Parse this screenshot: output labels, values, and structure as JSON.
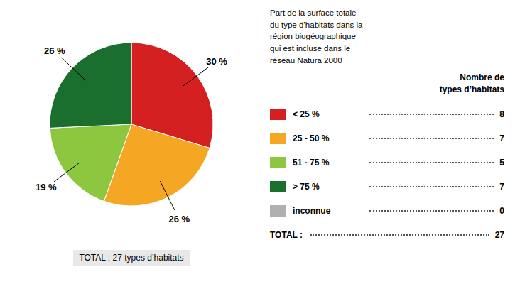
{
  "chart_data": [
    {
      "type": "pie",
      "values": [
        30,
        26,
        19,
        26
      ],
      "value_labels": [
        "30 %",
        "26 %",
        "19 %",
        "26 %"
      ],
      "colors": [
        "#d42020",
        "#f5a623",
        "#8dc63f",
        "#1a6e2e"
      ],
      "data_labels": true,
      "annotations": [
        "TOTAL : 27 types d’habitats"
      ]
    },
    {
      "type": "table",
      "annotations": [
        "Part de la surface totale\ndu type d’habitats dans la\nrégion biogéographique\nqui est incluse dans le\nréseau Natura 2000"
      ],
      "title": "Nombre de\ntypes d’habitats",
      "categories": [
        "< 25 %",
        "25 - 50 %",
        "51 - 75 %",
        "> 75 %",
        "inconnue"
      ],
      "values": [
        8,
        7,
        5,
        7,
        0
      ],
      "colors": [
        "#d42020",
        "#f5a623",
        "#8dc63f",
        "#1a6e2e",
        "#b0b0b0"
      ],
      "total_label": "TOTAL : ",
      "total": 27
    }
  ]
}
